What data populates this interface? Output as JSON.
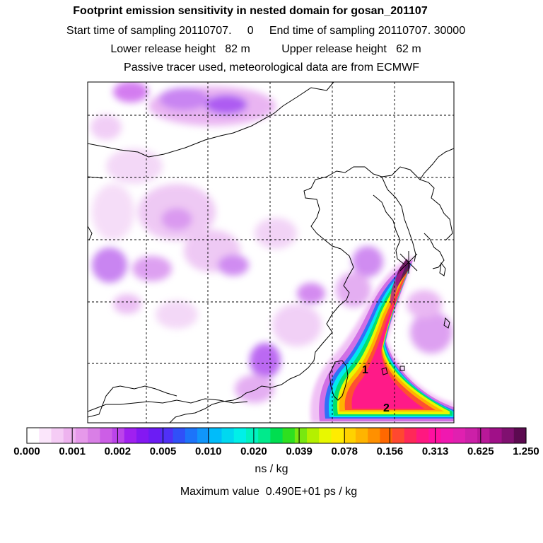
{
  "header": {
    "title": "Footprint emission sensitivity in nested domain for gosan_201107",
    "sampling_line": "Start time of sampling 20110707.     0     End time of sampling 20110707. 30000",
    "release_line": "Lower release height   82 m          Upper release height   62 m",
    "tracer_line": "Passive tracer used, meteorological data are from ECMWF"
  },
  "map": {
    "labels": {
      "label_1": "1",
      "label_2": "2"
    }
  },
  "colorbar": {
    "tick_labels": [
      "0.000",
      "0.001",
      "0.002",
      "0.005",
      "0.010",
      "0.020",
      "0.039",
      "0.078",
      "0.156",
      "0.313",
      "0.625",
      "1.250"
    ],
    "colors": [
      "#ffffff",
      "#fbe6fb",
      "#f5ccf5",
      "#eeb3ef",
      "#e699ea",
      "#d97fe6",
      "#cc5ee6",
      "#bb44ea",
      "#a020f0",
      "#8418f2",
      "#6c1cf4",
      "#5030f6",
      "#3050f8",
      "#1c74fa",
      "#1096fb",
      "#00bcfa",
      "#00d8f0",
      "#00f0e8",
      "#00f2c0",
      "#00ea8c",
      "#00de50",
      "#2ee020",
      "#78e810",
      "#b4f000",
      "#e8f800",
      "#ffec00",
      "#ffd200",
      "#ffb400",
      "#ff9000",
      "#ff6800",
      "#ff4830",
      "#ff2858",
      "#ff1880",
      "#ff10a0",
      "#f018b0",
      "#e020b0",
      "#cc20a8",
      "#b81898",
      "#a01088",
      "#801070",
      "#5c0a50"
    ],
    "units": "ns / kg",
    "max_value_line": "Maximum value  0.490E+01 ps / kg"
  }
}
